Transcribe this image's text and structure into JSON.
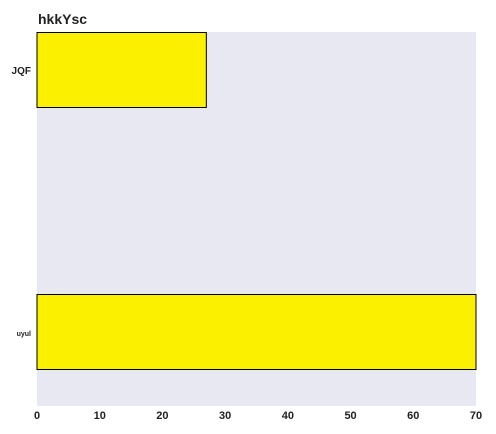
{
  "chart_data": {
    "type": "bar",
    "orientation": "horizontal",
    "title": "hkkYsc",
    "xlabel": "",
    "ylabel": "",
    "categories": [
      "JQF",
      "uyul"
    ],
    "values": [
      27,
      70
    ],
    "xlim": [
      0,
      70
    ],
    "xticks": [
      "0",
      "10",
      "20",
      "30",
      "40",
      "50",
      "60",
      "70"
    ],
    "grid": false,
    "colors": {
      "bar": "#FAF000",
      "bar_stroke": "#000000",
      "plot_bg": "#E8E8F2",
      "text": "#222222"
    }
  }
}
